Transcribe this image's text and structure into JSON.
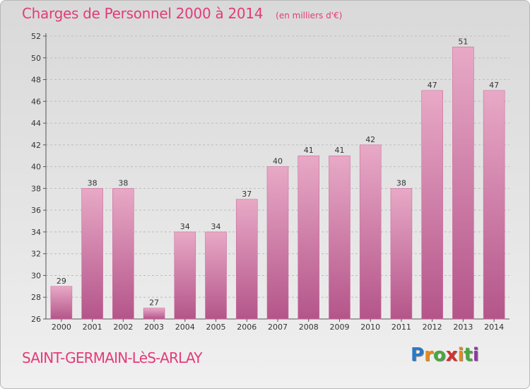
{
  "header": {
    "title": "Charges de Personnel 2000 à 2014",
    "subtitle": "(en milliers d'€)"
  },
  "footer": {
    "commune": "SAINT-GERMAIN-LèS-ARLAY",
    "brand_letters": [
      "P",
      "r",
      "o",
      "x",
      "i",
      "t",
      "i"
    ],
    "brand_colors": [
      "#2b78c5",
      "#e8891a",
      "#4aa63f",
      "#d2302f",
      "#e8891a",
      "#4aa63f",
      "#8b3aa0"
    ]
  },
  "colors": {
    "bar": "#cc6f9e",
    "bar_light": "#e8a9c6",
    "bar_dark": "#b4558a",
    "grid": "#bdbdbd"
  },
  "chart_data": {
    "type": "bar",
    "title": "Charges de Personnel 2000 à 2014",
    "subtitle": "(en milliers d'€)",
    "categories": [
      "2000",
      "2001",
      "2002",
      "2003",
      "2004",
      "2005",
      "2006",
      "2007",
      "2008",
      "2009",
      "2010",
      "2011",
      "2012",
      "2013",
      "2014"
    ],
    "values": [
      29,
      38,
      38,
      27,
      34,
      34,
      37,
      40,
      41,
      41,
      42,
      38,
      47,
      51,
      47
    ],
    "ylim": [
      26,
      52
    ],
    "yticks": [
      26,
      28,
      30,
      32,
      34,
      36,
      38,
      40,
      42,
      44,
      46,
      48,
      50,
      52
    ],
    "grid": true,
    "xlabel": "",
    "ylabel": ""
  }
}
